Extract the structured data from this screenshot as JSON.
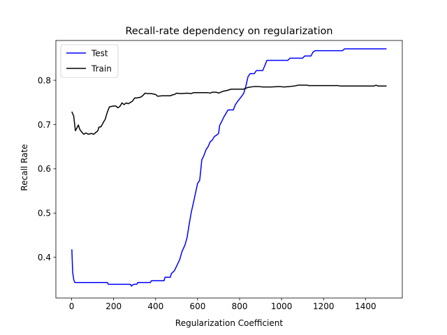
{
  "chart_data": {
    "type": "line",
    "title": "Recall-rate dependency on regularization",
    "xlabel": "Regularization Coefficient",
    "ylabel": "Recall Rate",
    "xlim": [
      -75,
      1575
    ],
    "ylim": [
      0.308,
      0.89
    ],
    "xticks": [
      0,
      200,
      400,
      600,
      800,
      1000,
      1200,
      1400
    ],
    "yticks": [
      0.4,
      0.5,
      0.6,
      0.7,
      0.8
    ],
    "ytick_labels": [
      "0.4",
      "0.5",
      "0.6",
      "0.7",
      "0.8"
    ],
    "grid": false,
    "legend_position": "top-left",
    "series": [
      {
        "name": "Test",
        "color": "#0000ff",
        "points": [
          [
            1,
            0.418
          ],
          [
            5,
            0.366
          ],
          [
            10,
            0.35
          ],
          [
            15,
            0.343
          ],
          [
            30,
            0.343
          ],
          [
            60,
            0.343
          ],
          [
            100,
            0.343
          ],
          [
            140,
            0.343
          ],
          [
            170,
            0.343
          ],
          [
            175,
            0.339
          ],
          [
            200,
            0.339
          ],
          [
            240,
            0.339
          ],
          [
            280,
            0.339
          ],
          [
            285,
            0.335
          ],
          [
            295,
            0.339
          ],
          [
            310,
            0.339
          ],
          [
            315,
            0.343
          ],
          [
            350,
            0.343
          ],
          [
            375,
            0.343
          ],
          [
            380,
            0.347
          ],
          [
            420,
            0.347
          ],
          [
            440,
            0.347
          ],
          [
            445,
            0.355
          ],
          [
            470,
            0.355
          ],
          [
            475,
            0.363
          ],
          [
            490,
            0.37
          ],
          [
            505,
            0.385
          ],
          [
            515,
            0.395
          ],
          [
            525,
            0.412
          ],
          [
            540,
            0.428
          ],
          [
            550,
            0.445
          ],
          [
            560,
            0.475
          ],
          [
            570,
            0.502
          ],
          [
            580,
            0.523
          ],
          [
            590,
            0.545
          ],
          [
            600,
            0.567
          ],
          [
            610,
            0.574
          ],
          [
            620,
            0.62
          ],
          [
            630,
            0.63
          ],
          [
            640,
            0.643
          ],
          [
            650,
            0.65
          ],
          [
            660,
            0.661
          ],
          [
            670,
            0.665
          ],
          [
            680,
            0.673
          ],
          [
            690,
            0.676
          ],
          [
            700,
            0.68
          ],
          [
            705,
            0.698
          ],
          [
            715,
            0.707
          ],
          [
            725,
            0.717
          ],
          [
            735,
            0.725
          ],
          [
            745,
            0.733
          ],
          [
            770,
            0.733
          ],
          [
            780,
            0.745
          ],
          [
            790,
            0.752
          ],
          [
            800,
            0.758
          ],
          [
            810,
            0.764
          ],
          [
            820,
            0.771
          ],
          [
            830,
            0.787
          ],
          [
            840,
            0.808
          ],
          [
            850,
            0.815
          ],
          [
            870,
            0.815
          ],
          [
            880,
            0.822
          ],
          [
            910,
            0.822
          ],
          [
            920,
            0.833
          ],
          [
            930,
            0.845
          ],
          [
            1000,
            0.845
          ],
          [
            1030,
            0.845
          ],
          [
            1040,
            0.85
          ],
          [
            1100,
            0.85
          ],
          [
            1110,
            0.855
          ],
          [
            1140,
            0.855
          ],
          [
            1150,
            0.864
          ],
          [
            1160,
            0.867
          ],
          [
            1200,
            0.867
          ],
          [
            1290,
            0.867
          ],
          [
            1300,
            0.871
          ],
          [
            1400,
            0.871
          ],
          [
            1500,
            0.871
          ]
        ]
      },
      {
        "name": "Train",
        "color": "#000000",
        "points": [
          [
            1,
            0.729
          ],
          [
            10,
            0.719
          ],
          [
            18,
            0.686
          ],
          [
            25,
            0.692
          ],
          [
            32,
            0.699
          ],
          [
            40,
            0.688
          ],
          [
            50,
            0.682
          ],
          [
            58,
            0.678
          ],
          [
            68,
            0.681
          ],
          [
            80,
            0.678
          ],
          [
            95,
            0.68
          ],
          [
            105,
            0.678
          ],
          [
            115,
            0.682
          ],
          [
            125,
            0.686
          ],
          [
            130,
            0.694
          ],
          [
            140,
            0.695
          ],
          [
            150,
            0.704
          ],
          [
            160,
            0.712
          ],
          [
            170,
            0.728
          ],
          [
            180,
            0.74
          ],
          [
            200,
            0.742
          ],
          [
            210,
            0.742
          ],
          [
            220,
            0.738
          ],
          [
            230,
            0.741
          ],
          [
            240,
            0.749
          ],
          [
            250,
            0.745
          ],
          [
            260,
            0.749
          ],
          [
            270,
            0.747
          ],
          [
            280,
            0.75
          ],
          [
            290,
            0.753
          ],
          [
            300,
            0.76
          ],
          [
            310,
            0.76
          ],
          [
            330,
            0.762
          ],
          [
            340,
            0.766
          ],
          [
            350,
            0.771
          ],
          [
            360,
            0.77
          ],
          [
            380,
            0.77
          ],
          [
            400,
            0.768
          ],
          [
            410,
            0.764
          ],
          [
            430,
            0.765
          ],
          [
            470,
            0.765
          ],
          [
            480,
            0.767
          ],
          [
            490,
            0.768
          ],
          [
            500,
            0.771
          ],
          [
            520,
            0.77
          ],
          [
            550,
            0.771
          ],
          [
            570,
            0.77
          ],
          [
            580,
            0.772
          ],
          [
            600,
            0.772
          ],
          [
            650,
            0.772
          ],
          [
            660,
            0.771
          ],
          [
            670,
            0.773
          ],
          [
            690,
            0.773
          ],
          [
            700,
            0.771
          ],
          [
            720,
            0.775
          ],
          [
            740,
            0.777
          ],
          [
            760,
            0.78
          ],
          [
            800,
            0.78
          ],
          [
            820,
            0.78
          ],
          [
            840,
            0.784
          ],
          [
            870,
            0.786
          ],
          [
            890,
            0.786
          ],
          [
            910,
            0.785
          ],
          [
            950,
            0.785
          ],
          [
            990,
            0.786
          ],
          [
            1010,
            0.785
          ],
          [
            1040,
            0.786
          ],
          [
            1060,
            0.787
          ],
          [
            1080,
            0.789
          ],
          [
            1100,
            0.789
          ],
          [
            1120,
            0.789
          ],
          [
            1130,
            0.788
          ],
          [
            1200,
            0.788
          ],
          [
            1270,
            0.788
          ],
          [
            1280,
            0.787
          ],
          [
            1400,
            0.787
          ],
          [
            1440,
            0.787
          ],
          [
            1450,
            0.789
          ],
          [
            1460,
            0.787
          ],
          [
            1500,
            0.787
          ]
        ]
      }
    ]
  }
}
